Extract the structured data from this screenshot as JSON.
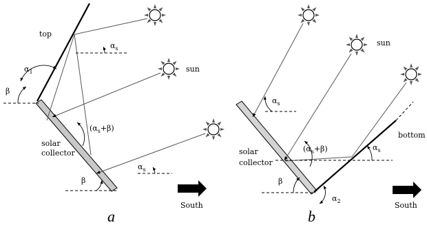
{
  "panel_a": {
    "caption": "a",
    "top_label": "top",
    "sun_label": "sun",
    "collector_label_line1": "solar",
    "collector_label_line2": "collector",
    "south_label": "South",
    "alpha_s": "α",
    "alpha_s_sub": "s",
    "alpha_1": "α",
    "alpha_1_sub": "1",
    "beta": "β",
    "sum_label_prefix": "(α",
    "sum_label_sub": "s",
    "sum_label_suffix": "+β)"
  },
  "panel_b": {
    "caption": "b",
    "bottom_label": "bottom",
    "sun_label": "sun",
    "collector_label_line1": "solar",
    "collector_label_line2": "collector",
    "south_label": "South",
    "alpha_s": "α",
    "alpha_s_sub": "s",
    "alpha_2": "α",
    "alpha_2_sub": "2",
    "beta": "β",
    "sum_label_prefix": "(α",
    "sum_label_sub": "s",
    "sum_label_suffix": "+β)"
  },
  "colors": {
    "collector_fill": "#c8c8c8",
    "sun_ray": "#888888"
  }
}
